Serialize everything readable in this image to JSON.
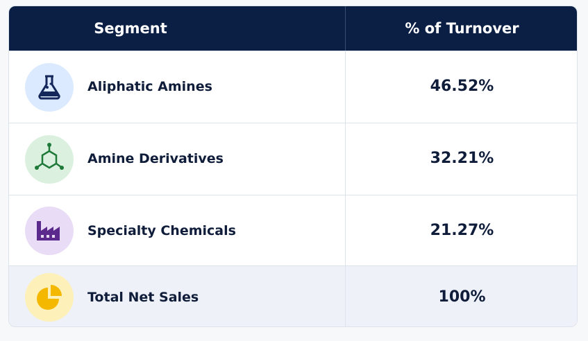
{
  "table": {
    "headers": [
      "Segment",
      "% of Turnover"
    ],
    "rows": [
      [
        "Aliphatic Amines",
        "46.52%"
      ],
      [
        "Amine Derivatives",
        "32.21%"
      ],
      [
        "Specialty Chemicals",
        "21.27%"
      ],
      [
        "Total Net Sales",
        "100%"
      ]
    ]
  }
}
